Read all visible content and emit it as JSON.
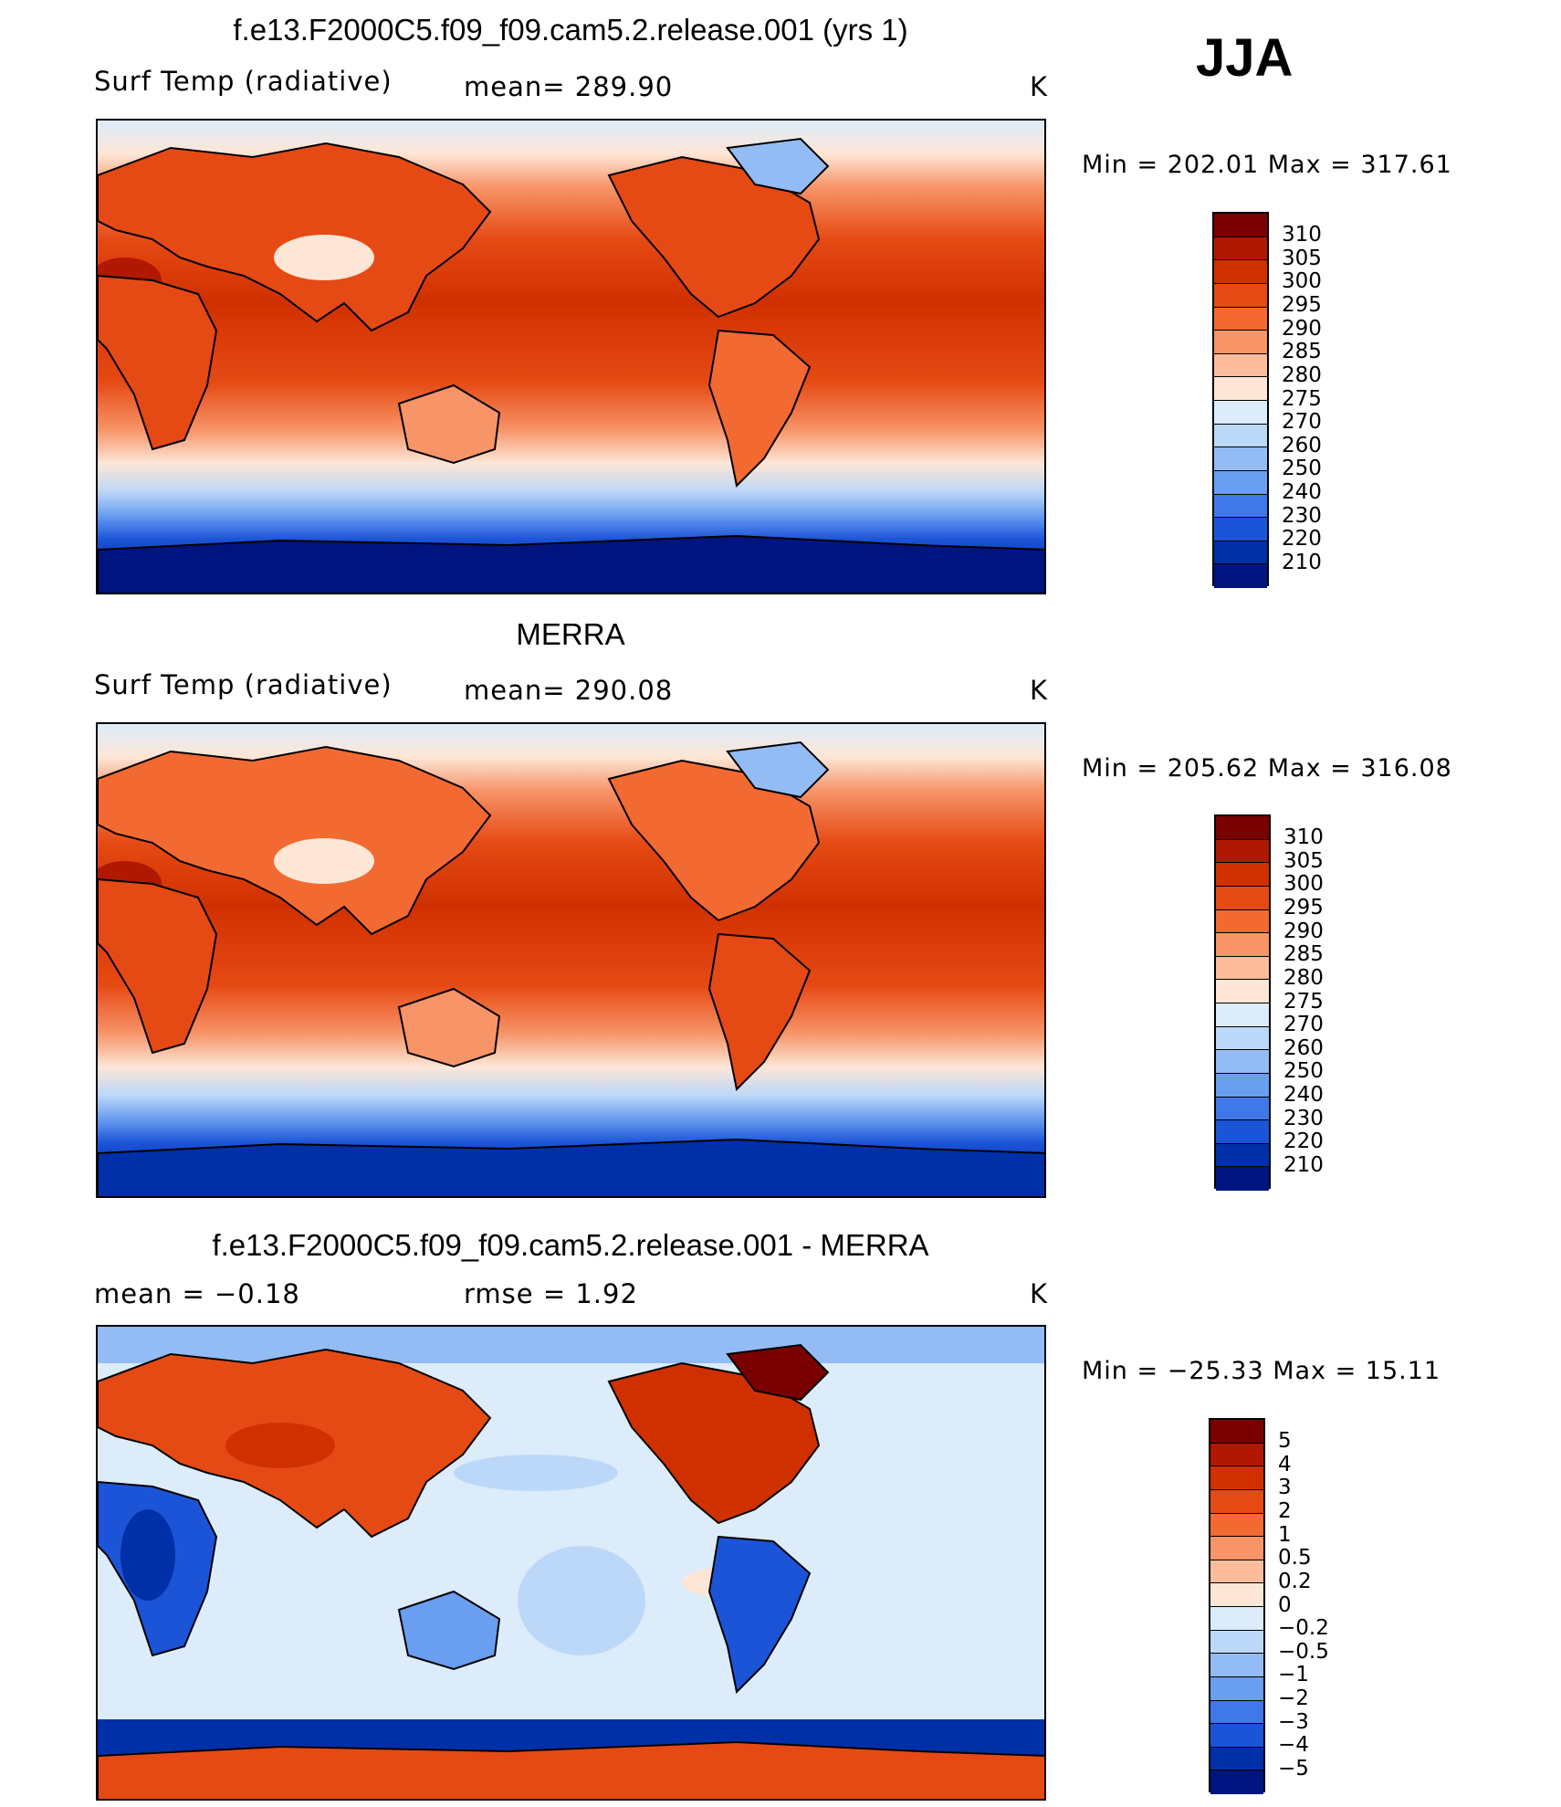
{
  "season": "JJA",
  "panels": [
    {
      "id": "model",
      "title": "f.e13.F2000C5.f09_f09.cam5.2.release.001 (yrs 1)",
      "left_label": "Surf Temp (radiative)",
      "center_label": "mean= 289.90",
      "unit": "K",
      "min_max": "Min = 202.01 Max = 317.61",
      "colorbar": [
        "310",
        "305",
        "300",
        "295",
        "290",
        "285",
        "280",
        "275",
        "270",
        "260",
        "250",
        "240",
        "230",
        "220",
        "210"
      ]
    },
    {
      "id": "obs",
      "title": "MERRA",
      "left_label": "Surf Temp (radiative)",
      "center_label": "mean= 290.08",
      "unit": "K",
      "min_max": "Min = 205.62 Max = 316.08",
      "colorbar": [
        "310",
        "305",
        "300",
        "295",
        "290",
        "285",
        "280",
        "275",
        "270",
        "260",
        "250",
        "240",
        "230",
        "220",
        "210"
      ]
    },
    {
      "id": "diff",
      "title": "f.e13.F2000C5.f09_f09.cam5.2.release.001 - MERRA",
      "left_label": "mean = −0.18",
      "center_label": "rmse = 1.92",
      "unit": "K",
      "min_max": "Min = −25.33 Max = 15.11",
      "colorbar": [
        "5",
        "4",
        "3",
        "2",
        "1",
        "0.5",
        "0.2",
        "0",
        "−0.2",
        "−0.5",
        "−1",
        "−2",
        "−3",
        "−4",
        "−5"
      ]
    }
  ],
  "colors": {
    "temp_scale": [
      "#7a0000",
      "#b01800",
      "#d03000",
      "#e64a14",
      "#f26a32",
      "#f79468",
      "#fcbc9c",
      "#fde6d6",
      "#dcecfb",
      "#bcd8f8",
      "#94bcf4",
      "#6a9ef0",
      "#4078ea",
      "#1c54d8",
      "#0030a8",
      "#001480"
    ],
    "diff_scale": [
      "#7a0000",
      "#b01800",
      "#d03000",
      "#e64a14",
      "#f26a32",
      "#f79468",
      "#fcbc9c",
      "#fde6d6",
      "#dcecfb",
      "#bcd8f8",
      "#94bcf4",
      "#6a9ef0",
      "#4078ea",
      "#1c54d8",
      "#0030a8",
      "#001480"
    ]
  }
}
